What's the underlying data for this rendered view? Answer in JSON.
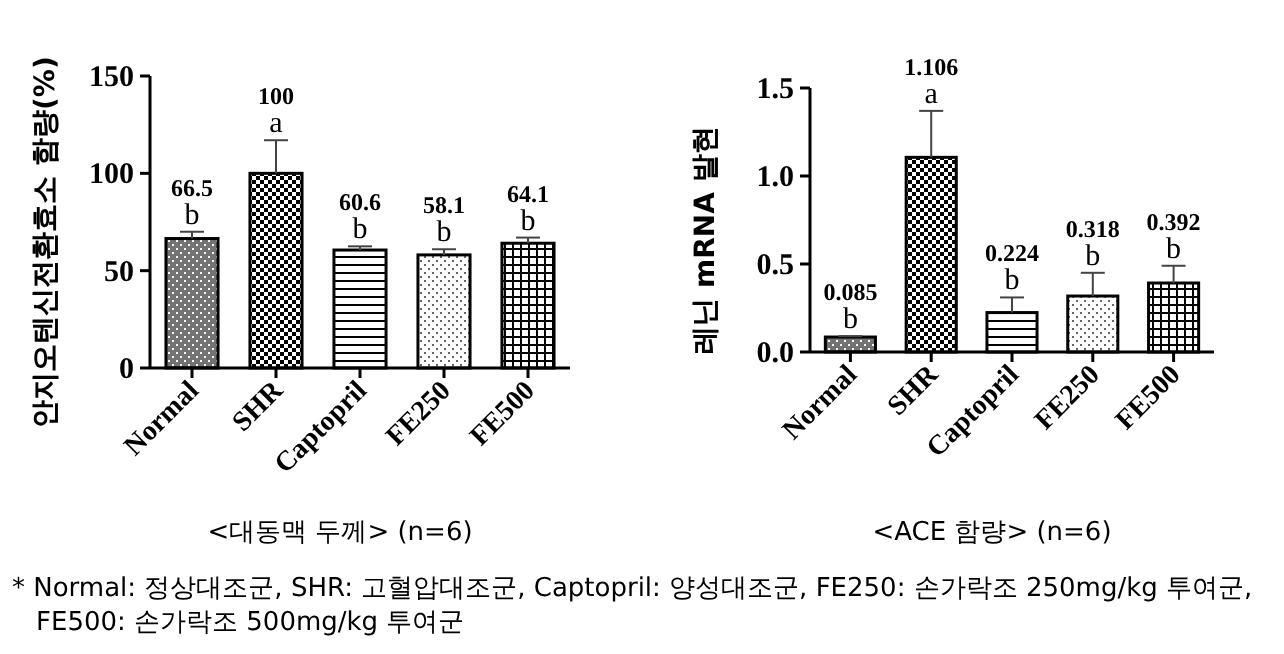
{
  "chart_data": [
    {
      "type": "bar",
      "ylabel": "안지오텐신전환효소 함량(%)",
      "categories": [
        "Normal",
        "SHR",
        "Captopril",
        "FE250",
        "FE500"
      ],
      "values": [
        66.5,
        100,
        60.6,
        58.1,
        64.1
      ],
      "colors": [
        "#000000",
        "#000000",
        "#000000",
        "#000000",
        "#000000"
      ],
      "errors": [
        [
          66.5,
          70
        ],
        [
          100,
          117
        ],
        [
          60.6,
          62.5
        ],
        [
          58.1,
          61
        ],
        [
          64.1,
          67
        ]
      ],
      "data_labels": true,
      "ylim": [
        0,
        150
      ],
      "yticks": [
        0,
        50,
        100,
        150
      ],
      "grid": false,
      "annotations": [
        {
          "text": "b",
          "x": "Normal",
          "y": 70
        },
        {
          "text": "a",
          "x": "SHR",
          "y": 117
        },
        {
          "text": "b",
          "x": "Captopril",
          "y": 62.5
        },
        {
          "text": "b",
          "x": "FE250",
          "y": 61
        },
        {
          "text": "b",
          "x": "FE500",
          "y": 67
        },
        "<대동맥 두께> (n=6)",
        "* Normal: 정상대조군, SHR: 고혈압대조군, Captopril: 양성대조군, FE250: 손가락조 250mg/kg 투여군, FE500: 손가락조 500mg/kg 투여군"
      ]
    },
    {
      "type": "bar",
      "ylabel": "레닌 mRNA 발현",
      "categories": [
        "Normal",
        "SHR",
        "Captopril",
        "FE250",
        "FE500"
      ],
      "values": [
        0.085,
        1.106,
        0.224,
        0.318,
        0.392
      ],
      "colors": [
        "#000000",
        "#000000",
        "#000000",
        "#000000",
        "#000000"
      ],
      "errors": [
        [
          0.085,
          0.09
        ],
        [
          1.106,
          1.37
        ],
        [
          0.224,
          0.31
        ],
        [
          0.318,
          0.45
        ],
        [
          0.392,
          0.49
        ]
      ],
      "data_labels": true,
      "ylim": [
        0,
        1.5
      ],
      "yticks": [
        {
          "value": 0,
          "label": "0.0"
        },
        {
          "value": 0.5,
          "label": "0.5"
        },
        {
          "value": 1,
          "label": "1.0"
        },
        {
          "value": 1.5,
          "label": "1.5"
        }
      ],
      "grid": false,
      "annotations": [
        {
          "text": "b",
          "x": "Normal",
          "y": 0.09
        },
        {
          "text": "a",
          "x": "SHR",
          "y": 1.37
        },
        {
          "text": "b",
          "x": "Captopril",
          "y": 0.31
        },
        {
          "text": "b",
          "x": "FE250",
          "y": 0.45
        },
        {
          "text": "b",
          "x": "FE500",
          "y": 0.49
        },
        "<ACE 함량> (n=6)"
      ]
    }
  ]
}
